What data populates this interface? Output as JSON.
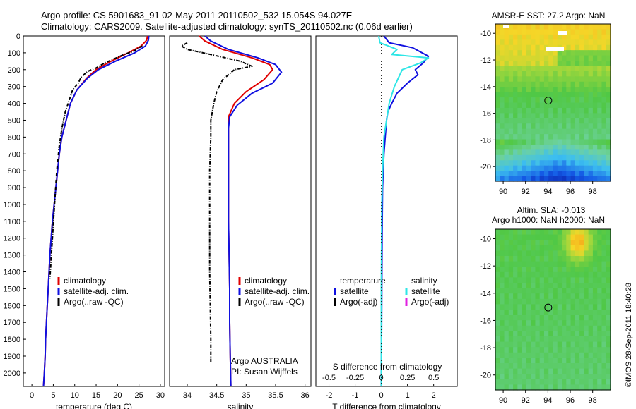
{
  "header": {
    "line1": "Argo profile: CS 5901683_91 02-May-2011 20110502_532 15.054S 94.027E",
    "line2": "Climatology: CARS2009. Satellite-adjusted climatology: synTS_20110502.nc (0.06d earlier)"
  },
  "colors": {
    "climatology": "#e00000",
    "satellite": "#1010e0",
    "argo": "#000000",
    "sat_salinity": "#2ee6e6",
    "argo_adj_salinity": "#e020e0"
  },
  "chart_data": [
    {
      "type": "line",
      "xlabel": "temperature (deg C)",
      "xlim": [
        -2,
        31
      ],
      "ylim": [
        2080,
        0
      ],
      "xticks": [
        0,
        5,
        10,
        15,
        20,
        25,
        30
      ],
      "yticks": [
        0,
        100,
        200,
        300,
        400,
        500,
        600,
        700,
        800,
        900,
        1000,
        1100,
        1200,
        1300,
        1400,
        1500,
        1600,
        1700,
        1800,
        1900,
        2000
      ],
      "legend": [
        "climatology",
        "satellite-adj. clim.",
        "Argo(..raw -QC)"
      ],
      "series": [
        {
          "name": "climatology",
          "x": [
            27.0,
            26.8,
            25.5,
            22.5,
            18.5,
            15.0,
            12.8,
            10.5,
            9.0,
            8.0,
            7.0,
            6.4,
            6.0,
            5.6,
            5.2,
            4.8,
            4.5,
            4.2,
            4.0,
            3.8,
            3.6,
            3.4,
            3.2,
            3.1,
            3.0,
            2.9,
            2.8,
            2.7
          ],
          "y": [
            0,
            25,
            60,
            100,
            150,
            200,
            250,
            320,
            400,
            500,
            600,
            700,
            800,
            900,
            1000,
            1100,
            1200,
            1300,
            1400,
            1500,
            1600,
            1700,
            1800,
            1900,
            1950,
            2000,
            2040,
            2080
          ]
        },
        {
          "name": "satellite-adj. clim.",
          "x": [
            27.3,
            27.2,
            26.5,
            24.0,
            19.5,
            15.5,
            13.0,
            10.5,
            9.0,
            8.0,
            7.0,
            6.4,
            6.0,
            5.6,
            5.2,
            4.8,
            4.5,
            4.2,
            4.0,
            3.8,
            3.6,
            3.4,
            3.2,
            3.1,
            3.0,
            2.9,
            2.8,
            2.7
          ],
          "y": [
            0,
            25,
            60,
            100,
            150,
            200,
            250,
            320,
            400,
            500,
            600,
            700,
            800,
            900,
            1000,
            1100,
            1200,
            1300,
            1400,
            1500,
            1600,
            1700,
            1800,
            1900,
            1950,
            2000,
            2040,
            2080
          ]
        },
        {
          "name": "Argo(..raw -QC)",
          "x": [
            25.8,
            25.0,
            23.8,
            21.5,
            17.0,
            15.0,
            13.0,
            11.5,
            10.8,
            9.5,
            9.0,
            7.8,
            7.0,
            6.4,
            5.8,
            5.3,
            4.8,
            4.2
          ],
          "y": [
            60,
            70,
            90,
            110,
            160,
            190,
            210,
            245,
            280,
            320,
            360,
            450,
            550,
            650,
            800,
            1000,
            1200,
            1440
          ]
        }
      ]
    },
    {
      "type": "line",
      "xlabel": "salinity",
      "xlim": [
        33.7,
        36.1
      ],
      "ylim": [
        2080,
        0
      ],
      "xticks": [
        34,
        34.5,
        35,
        35.5,
        36
      ],
      "legend": [
        "climatology",
        "satellite-adj. clim.",
        "Argo(..raw -QC)"
      ],
      "annotation_lines": [
        "Argo AUSTRALIA",
        "PI: Susan Wijffels"
      ],
      "series": [
        {
          "name": "climatology",
          "x": [
            34.2,
            34.3,
            34.6,
            35.1,
            35.4,
            35.45,
            35.3,
            35.0,
            34.8,
            34.7,
            34.7,
            34.7,
            34.7,
            34.7,
            34.71,
            34.72,
            34.72,
            34.73,
            34.74
          ],
          "y": [
            0,
            30,
            80,
            130,
            170,
            200,
            260,
            330,
            400,
            480,
            550,
            700,
            900,
            1100,
            1300,
            1500,
            1700,
            1900,
            2080
          ]
        },
        {
          "name": "satellite-adj. clim.",
          "x": [
            34.3,
            34.4,
            34.7,
            35.2,
            35.5,
            35.6,
            35.45,
            35.1,
            34.85,
            34.72,
            34.7,
            34.7,
            34.7,
            34.7,
            34.71,
            34.72,
            34.72,
            34.73,
            34.74
          ],
          "y": [
            0,
            30,
            80,
            130,
            170,
            215,
            280,
            340,
            410,
            480,
            550,
            700,
            900,
            1100,
            1300,
            1500,
            1700,
            1900,
            2080
          ]
        },
        {
          "name": "Argo(..raw -QC)",
          "x": [
            34.0,
            33.9,
            34.0,
            34.4,
            34.9,
            35.1,
            34.8,
            34.6,
            34.5,
            34.45,
            34.4,
            34.4,
            34.38,
            34.38,
            34.38,
            34.38,
            34.39,
            34.4,
            34.4,
            34.4
          ],
          "y": [
            40,
            60,
            80,
            110,
            150,
            180,
            200,
            260,
            330,
            400,
            500,
            600,
            800,
            1000,
            1200,
            1400,
            1600,
            1800,
            1900,
            1940
          ]
        }
      ]
    },
    {
      "type": "line",
      "xlabel": "T difference from climatology",
      "xlabel_top": "S difference from climatology",
      "xlim": [
        -2.5,
        2.9
      ],
      "ylim": [
        2080,
        0
      ],
      "xticks": [
        -2,
        -1,
        0,
        1,
        2
      ],
      "sticks": [
        "-0.5",
        "-0.25",
        "0",
        "0.25",
        "0.5"
      ],
      "legend": {
        "temperature_title": "temperature",
        "salinity_title": "salinity",
        "temperature_items": [
          "satellite",
          "Argo(-adj)"
        ],
        "salinity_items": [
          "satellite",
          "Argo(-adj)"
        ]
      },
      "series": [
        {
          "name": "satellite",
          "x": [
            0.1,
            0.3,
            1.2,
            1.8,
            1.6,
            1.3,
            1.4,
            1.0,
            0.6,
            0.4,
            0.25,
            0.2,
            0.1,
            0.05,
            0.03,
            0.02,
            0.01,
            0.0
          ],
          "y": [
            0,
            40,
            70,
            120,
            160,
            200,
            230,
            280,
            340,
            400,
            450,
            500,
            700,
            900,
            1200,
            1500,
            1800,
            2080
          ]
        },
        {
          "name": "satellite",
          "x": [
            -0.1,
            -0.05,
            0.6,
            0.4,
            1.8,
            1.5,
            0.8,
            0.5,
            0.3,
            0.2,
            0.1,
            0.05,
            0.02,
            0.0,
            0.0
          ],
          "y": [
            0,
            40,
            80,
            110,
            130,
            160,
            200,
            300,
            400,
            500,
            600,
            800,
            1000,
            1500,
            2080
          ]
        }
      ]
    },
    {
      "type": "heatmap",
      "title": "AMSR-E SST: 27.2 Argo: NaN",
      "xticks": [
        90,
        92,
        94,
        96,
        98
      ],
      "yticks": [
        -10,
        -12,
        -14,
        -16,
        -18,
        -20
      ],
      "xlim": [
        89.3,
        99.6
      ],
      "ylim": [
        -21.1,
        -9.3
      ],
      "profile_marker": {
        "lon": 94.03,
        "lat": -15.05
      }
    },
    {
      "type": "heatmap",
      "title_line1": "Altim. SLA: -0.013",
      "title_line2": "Argo h1000: NaN h2000: NaN",
      "xticks": [
        90,
        92,
        94,
        96,
        98
      ],
      "yticks": [
        -10,
        -12,
        -14,
        -16,
        -18,
        -20
      ],
      "xlim": [
        89.3,
        99.6
      ],
      "ylim": [
        -21.1,
        -9.3
      ],
      "profile_marker": {
        "lon": 94.03,
        "lat": -15.05
      }
    }
  ],
  "credit": "©IMOS 28-Sep-2011 18:40:28"
}
